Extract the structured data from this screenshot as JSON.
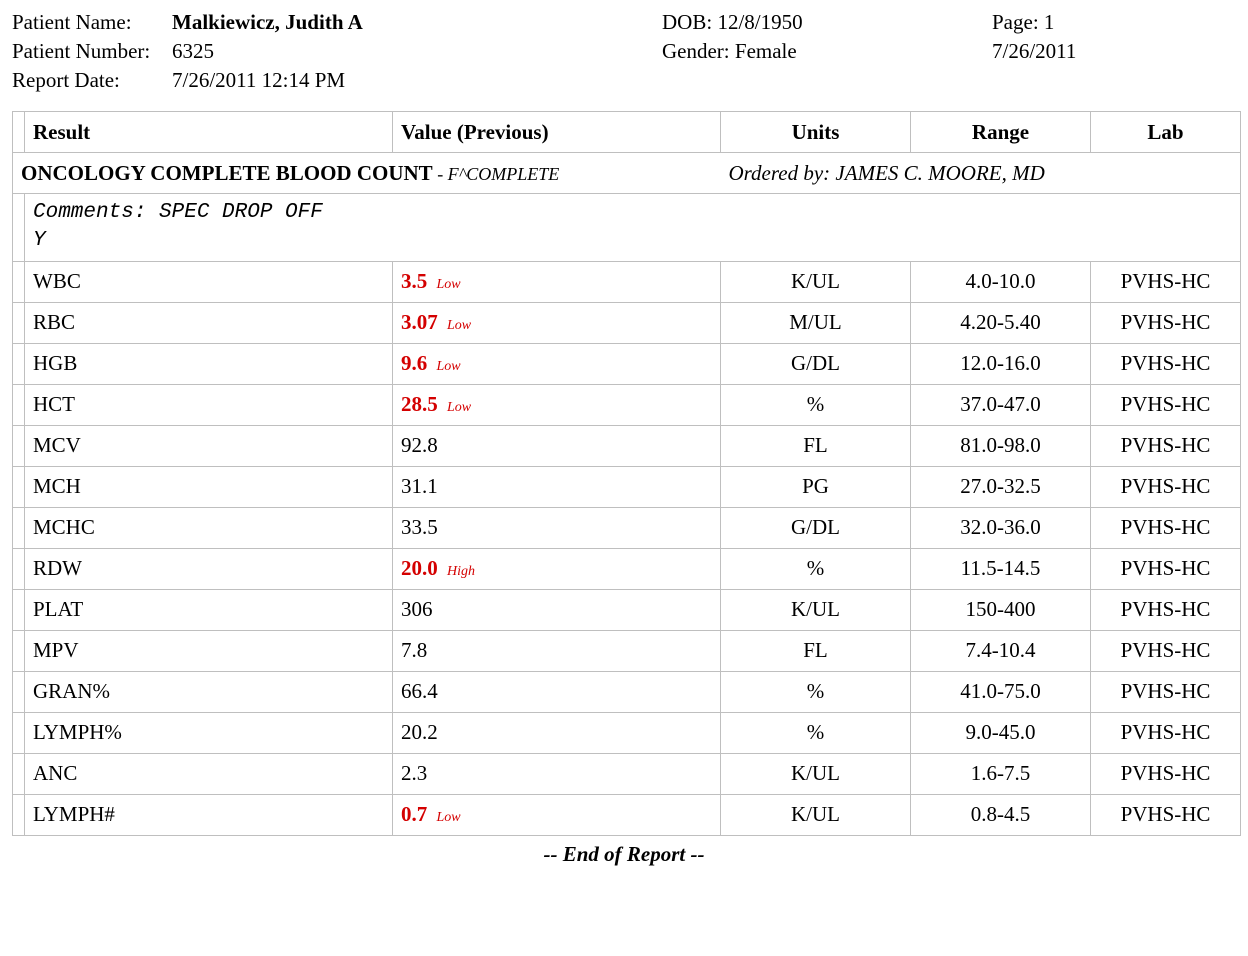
{
  "header": {
    "patient_name_label": "Patient Name:",
    "patient_name": "Malkiewicz, Judith A",
    "patient_number_label": "Patient Number:",
    "patient_number": "6325",
    "report_date_label": "Report Date:",
    "report_date": "7/26/2011 12:14 PM",
    "dob_label": "DOB:",
    "dob": "12/8/1950",
    "gender_label": "Gender:",
    "gender": "Female",
    "page_label": "Page:",
    "page": "1",
    "print_date": "7/26/2011"
  },
  "columns": {
    "result": "Result",
    "value": "Value (Previous)",
    "units": "Units",
    "range": "Range",
    "lab": "Lab"
  },
  "panel": {
    "title": "ONCOLOGY COMPLETE BLOOD COUNT",
    "subtitle": " - F^COMPLETE",
    "ordered_by_label": "Ordered by:",
    "ordered_by": "JAMES C. MOORE, MD",
    "comments_label": "Comments:",
    "comments_line1": "SPEC DROP OFF",
    "comments_line2": "Y"
  },
  "rows": [
    {
      "name": "WBC",
      "value": "3.5",
      "flag": "Low",
      "units": "K/UL",
      "range": "4.0-10.0",
      "lab": "PVHS-HC"
    },
    {
      "name": "RBC",
      "value": "3.07",
      "flag": "Low",
      "units": "M/UL",
      "range": "4.20-5.40",
      "lab": "PVHS-HC"
    },
    {
      "name": "HGB",
      "value": "9.6",
      "flag": "Low",
      "units": "G/DL",
      "range": "12.0-16.0",
      "lab": "PVHS-HC"
    },
    {
      "name": "HCT",
      "value": "28.5",
      "flag": "Low",
      "units": "%",
      "range": "37.0-47.0",
      "lab": "PVHS-HC"
    },
    {
      "name": "MCV",
      "value": "92.8",
      "flag": "",
      "units": "FL",
      "range": "81.0-98.0",
      "lab": "PVHS-HC"
    },
    {
      "name": "MCH",
      "value": "31.1",
      "flag": "",
      "units": "PG",
      "range": "27.0-32.5",
      "lab": "PVHS-HC"
    },
    {
      "name": "MCHC",
      "value": "33.5",
      "flag": "",
      "units": "G/DL",
      "range": "32.0-36.0",
      "lab": "PVHS-HC"
    },
    {
      "name": "RDW",
      "value": "20.0",
      "flag": "High",
      "units": "%",
      "range": "11.5-14.5",
      "lab": "PVHS-HC"
    },
    {
      "name": "PLAT",
      "value": "306",
      "flag": "",
      "units": "K/UL",
      "range": "150-400",
      "lab": "PVHS-HC"
    },
    {
      "name": "MPV",
      "value": "7.8",
      "flag": "",
      "units": "FL",
      "range": "7.4-10.4",
      "lab": "PVHS-HC"
    },
    {
      "name": "GRAN%",
      "value": "66.4",
      "flag": "",
      "units": "%",
      "range": "41.0-75.0",
      "lab": "PVHS-HC"
    },
    {
      "name": "LYMPH%",
      "value": "20.2",
      "flag": "",
      "units": "%",
      "range": "9.0-45.0",
      "lab": "PVHS-HC"
    },
    {
      "name": "ANC",
      "value": "2.3",
      "flag": "",
      "units": "K/UL",
      "range": "1.6-7.5",
      "lab": "PVHS-HC"
    },
    {
      "name": "LYMPH#",
      "value": "0.7",
      "flag": "Low",
      "units": "K/UL",
      "range": "0.8-4.5",
      "lab": "PVHS-HC"
    }
  ],
  "footer": {
    "end": "-- End of Report --"
  },
  "style": {
    "flag_color": "#d40000",
    "border_color": "#bfbfbf",
    "font_family": "Times New Roman",
    "mono_family": "Courier New"
  }
}
